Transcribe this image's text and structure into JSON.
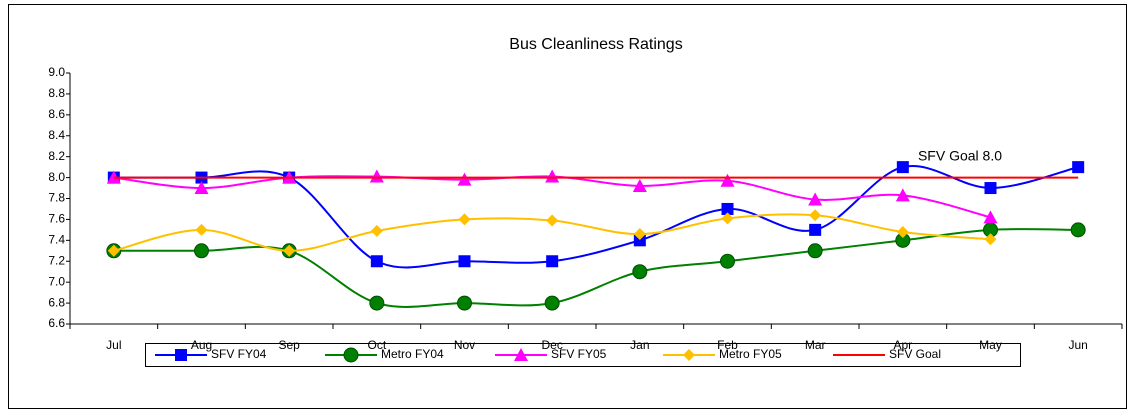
{
  "chart_data": {
    "type": "line",
    "title": "Bus Cleanliness Ratings",
    "categories": [
      "Jul",
      "Aug",
      "Sep",
      "Oct",
      "Nov",
      "Dec",
      "Jan",
      "Feb",
      "Mar",
      "Apr",
      "May",
      "Jun"
    ],
    "series": [
      {
        "name": "SFV FY04",
        "color": "#0000ff",
        "marker": "square",
        "values": [
          8.0,
          8.0,
          8.0,
          7.2,
          7.2,
          7.2,
          7.4,
          7.7,
          7.5,
          8.1,
          7.9,
          8.1
        ]
      },
      {
        "name": "Metro FY04",
        "color": "#008000",
        "marker": "circle",
        "values": [
          7.3,
          7.3,
          7.3,
          6.8,
          6.8,
          6.8,
          7.1,
          7.2,
          7.3,
          7.4,
          7.5,
          7.5
        ]
      },
      {
        "name": "SFV FY05",
        "color": "#ff00ff",
        "marker": "triangle",
        "values": [
          8.0,
          7.9,
          8.0,
          8.01,
          7.98,
          8.01,
          7.92,
          7.97,
          7.79,
          7.83,
          7.62,
          null
        ]
      },
      {
        "name": "Metro FY05",
        "color": "#ffc000",
        "marker": "diamond",
        "values": [
          7.3,
          7.5,
          7.3,
          7.49,
          7.6,
          7.59,
          7.46,
          7.61,
          7.64,
          7.48,
          7.41,
          null
        ]
      },
      {
        "name": "SFV Goal",
        "color": "#ff0000",
        "marker": "none",
        "values": [
          8.0,
          8.0,
          8.0,
          8.0,
          8.0,
          8.0,
          8.0,
          8.0,
          8.0,
          8.0,
          8.0,
          8.0
        ]
      }
    ],
    "annotations": [
      "SFV Goal 8.0"
    ],
    "smooth": true,
    "ylim": [
      6.6,
      9.0
    ],
    "yticks": [
      6.6,
      6.8,
      {
        "value": 7.0,
        "label": "7.0"
      },
      7.2,
      7.4,
      7.6,
      7.8,
      {
        "value": 8.0,
        "label": "8.0"
      },
      8.2,
      8.4,
      8.6,
      8.8,
      {
        "value": 9.0,
        "label": "9.0"
      }
    ],
    "grid": false,
    "legend": "bottom"
  }
}
